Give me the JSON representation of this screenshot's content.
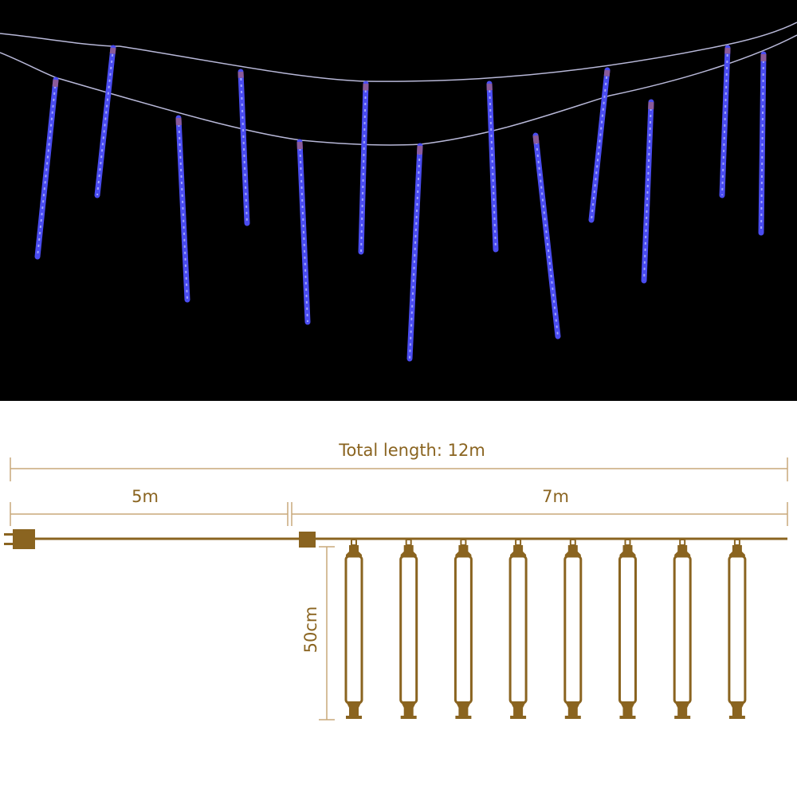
{
  "photo": {
    "background": "#000000",
    "tube_color": "#4a4cf0",
    "tube_glow": "#9fa3ff",
    "wire_color": "#b8b8d8",
    "tube_count": 13
  },
  "diagram": {
    "color": "#8a6420",
    "dimension_color": "#c9a97a",
    "total_label": "Total length: 12m",
    "lead_label": "5m",
    "lit_label": "7m",
    "tube_length_label": "50cm",
    "tube_count": 8
  }
}
